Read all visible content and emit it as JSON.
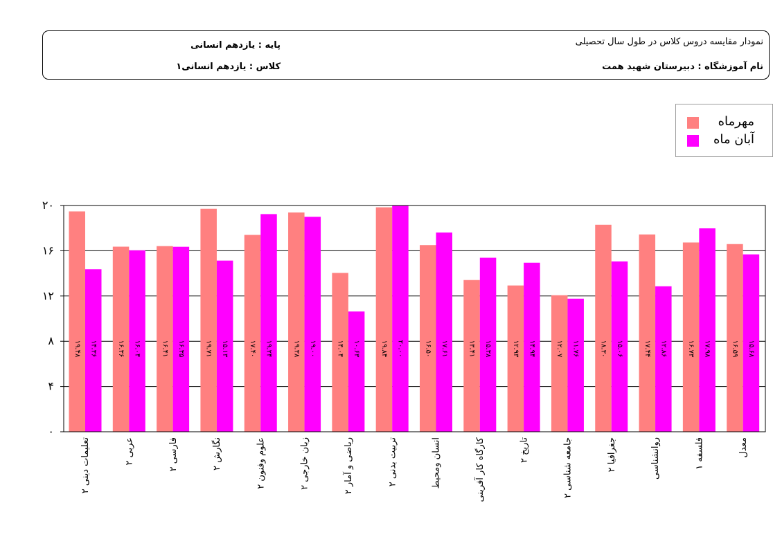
{
  "header": {
    "chart_title": "نمودار مقایسه دروس کلاس در طول سال تحصیلی",
    "grade_label": "پایه :",
    "grade_value": "یازدهم انسانی",
    "school_label": "نام آموزشگاه :",
    "school_value": "دبیرستان شهید همت",
    "class_label": "کلاس :",
    "class_value": "یازدهم انسانی۱"
  },
  "colors": {
    "series1": "#ff8080",
    "series2": "#ff00ff",
    "grid": "#000000"
  },
  "chart_data": {
    "type": "bar",
    "ylim": [
      0,
      20
    ],
    "yticks": [
      0,
      4,
      8,
      12,
      16,
      20
    ],
    "ytick_labels": [
      "۰",
      "۴",
      "۸",
      "۱۲",
      "۱۶",
      "۲۰"
    ],
    "grid": true,
    "legend_position": "top-right",
    "categories": [
      "تعلیمات دینی ۲",
      "عربی ۲",
      "فارسی ۲",
      "نگارش ۲",
      "علوم وفنون ۲",
      "زبان خارجی ۲",
      "ریاضی و آمار ۲",
      "تربیت بدنی ۲",
      "انسان ومحیط",
      "کارگاه کار آفرینی",
      "تاریخ ۲",
      "جامعه شناسی ۲",
      "جغرافیا ۲",
      "روانشناسی",
      "فلسفه ۱",
      "معدل"
    ],
    "series": [
      {
        "name": "مهرماه",
        "values": [
          19.48,
          16.36,
          16.41,
          19.71,
          17.4,
          19.38,
          14.04,
          19.84,
          16.5,
          13.41,
          12.93,
          12.07,
          18.3,
          17.44,
          16.73,
          16.59
        ],
        "labels": [
          "۱۹.۴۸",
          "۱۶.۳۶",
          "۱۶.۴۱",
          "۱۹.۷۱",
          "۱۷.۴۰",
          "۱۹.۳۸",
          "۱۴.۰۴",
          "۱۹.۸۴",
          "۱۶.۵۰",
          "۱۳.۴۱",
          "۱۲.۹۳",
          "۱۲.۰۷",
          "۱۸.۳۰",
          "۱۷.۴۴",
          "۱۶.۷۳",
          "۱۶.۵۹"
        ]
      },
      {
        "name": "آبان ماه",
        "values": [
          14.36,
          16.04,
          16.35,
          15.13,
          19.24,
          19.0,
          10.63,
          20.0,
          17.61,
          15.38,
          14.94,
          11.76,
          15.06,
          12.86,
          17.98,
          15.68
        ],
        "labels": [
          "۱۴.۳۶",
          "۱۶.۰۴",
          "۱۶.۳۵",
          "۱۵.۱۳",
          "۱۹.۲۴",
          "۱۹.۰۰",
          "۱۰.۶۳",
          "۲۰.۰۰",
          "۱۷.۶۱",
          "۱۵.۳۸",
          "۱۴.۹۴",
          "۱۱.۷۶",
          "۱۵.۰۶",
          "۱۲.۸۶",
          "۱۷.۹۸",
          "۱۵.۶۸"
        ]
      }
    ]
  }
}
